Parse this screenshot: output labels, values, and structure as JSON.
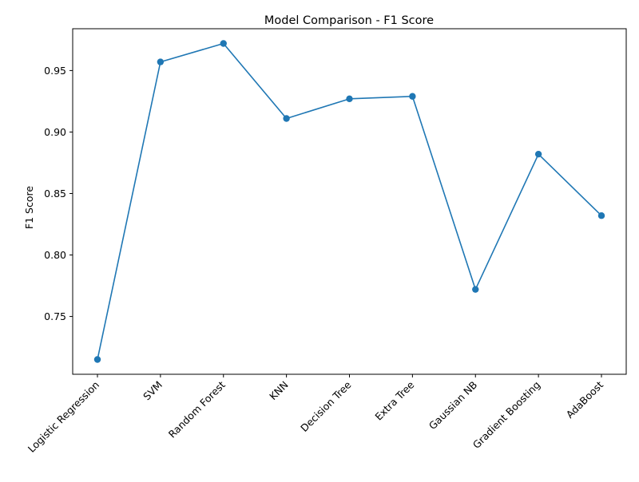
{
  "chart_data": {
    "type": "line",
    "title": "Model Comparison - F1 Score",
    "xlabel": "",
    "ylabel": "F1 Score",
    "categories": [
      "Logistic Regression",
      "SVM",
      "Random Forest",
      "KNN",
      "Decision Tree",
      "Extra Tree",
      "Gaussian NB",
      "Gradient Boosting",
      "AdaBoost"
    ],
    "series": [
      {
        "values": [
          0.715,
          0.957,
          0.972,
          0.911,
          0.927,
          0.929,
          0.772,
          0.882,
          0.832
        ]
      }
    ],
    "ylim": [
      0.703,
      0.984
    ],
    "yticks": [
      0.75,
      0.8,
      0.85,
      0.9,
      0.95
    ],
    "ytick_labels": [
      "0.75",
      "0.80",
      "0.85",
      "0.90",
      "0.95"
    ],
    "grid": false,
    "marker": "circle",
    "color": "#1f77b4"
  }
}
